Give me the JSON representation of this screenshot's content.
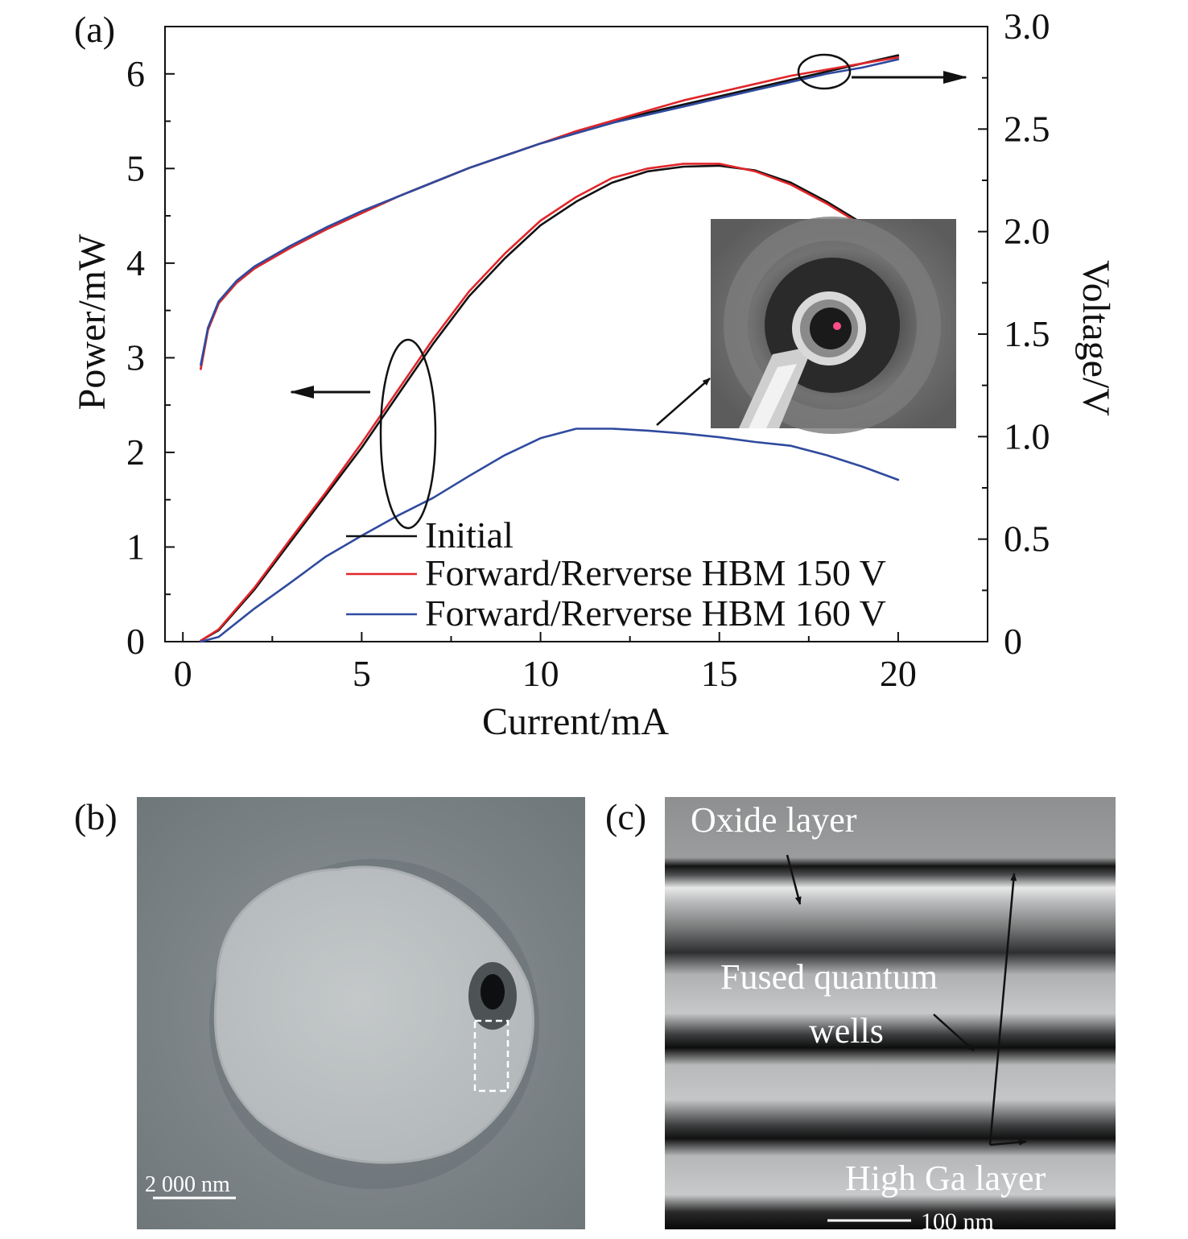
{
  "colors": {
    "initial": "#111111",
    "hbm150": "#e0262a",
    "hbm160": "#2f4a9e",
    "axis": "#111111"
  },
  "panel_labels": {
    "a": "(a)",
    "b": "(b)",
    "c": "(c)"
  },
  "chart_data": {
    "type": "line",
    "xlabel": "Current/mA",
    "ylabel_left": "Power/mW",
    "ylabel_right": "Voltage/V",
    "xlim": [
      -0.5,
      22.5
    ],
    "ylim_left": [
      0,
      6.5
    ],
    "ylim_right": [
      0,
      3.0
    ],
    "x_ticks": [
      "0",
      "5",
      "10",
      "15",
      "20"
    ],
    "y_ticks_left": [
      "0",
      "1",
      "2",
      "3",
      "4",
      "5",
      "6"
    ],
    "y_ticks_right": [
      "0",
      "0.5",
      "1.0",
      "1.5",
      "2.0",
      "2.5",
      "3.0"
    ],
    "grid": false,
    "legend_position": "bottom-right",
    "series": [
      {
        "name": "Initial",
        "axis": "left",
        "x": [
          0.5,
          1,
          2,
          3,
          4,
          5,
          6,
          7,
          8,
          9,
          10,
          11,
          12,
          13,
          14,
          15,
          16,
          17,
          18,
          19
        ],
        "y": [
          0.01,
          0.12,
          0.55,
          1.05,
          1.55,
          2.05,
          2.6,
          3.15,
          3.65,
          4.05,
          4.4,
          4.65,
          4.85,
          4.97,
          5.02,
          5.03,
          4.98,
          4.85,
          4.65,
          4.42
        ]
      },
      {
        "name": "Forward/Rerverse HBM 150 V",
        "axis": "left",
        "x": [
          0.5,
          1,
          2,
          3,
          4,
          5,
          6,
          7,
          8,
          9,
          10,
          11,
          12,
          13,
          14,
          15,
          16,
          17,
          18,
          19
        ],
        "y": [
          0.01,
          0.13,
          0.57,
          1.08,
          1.58,
          2.1,
          2.65,
          3.2,
          3.7,
          4.1,
          4.45,
          4.7,
          4.9,
          5.0,
          5.05,
          5.05,
          4.97,
          4.83,
          4.63,
          4.4
        ]
      },
      {
        "name": "Forward/Rerverse HBM 160 V",
        "axis": "left",
        "x": [
          0.5,
          1,
          2,
          3,
          4,
          5,
          6,
          7,
          8,
          9,
          10,
          11,
          12,
          13,
          14,
          15,
          16,
          17,
          18,
          19,
          20
        ],
        "y": [
          0.0,
          0.05,
          0.35,
          0.62,
          0.9,
          1.12,
          1.33,
          1.52,
          1.75,
          1.97,
          2.15,
          2.25,
          2.25,
          2.23,
          2.2,
          2.16,
          2.11,
          2.07,
          1.97,
          1.85,
          1.71
        ]
      },
      {
        "axis": "right",
        "x": [
          0.5,
          0.7,
          1,
          1.5,
          2,
          3,
          4,
          5,
          6,
          7,
          8,
          9,
          10,
          11,
          12,
          13,
          14,
          15,
          16,
          17,
          18,
          19,
          20
        ],
        "y": [
          1.33,
          1.52,
          1.65,
          1.75,
          1.82,
          1.92,
          2.01,
          2.09,
          2.17,
          2.24,
          2.31,
          2.37,
          2.43,
          2.48,
          2.53,
          2.58,
          2.62,
          2.66,
          2.7,
          2.74,
          2.78,
          2.82,
          2.86
        ]
      },
      {
        "axis": "right",
        "x": [
          0.5,
          0.7,
          1,
          1.5,
          2,
          3,
          4,
          5,
          6,
          7,
          8,
          9,
          10,
          11,
          12,
          13,
          14,
          15,
          16,
          17,
          18,
          19,
          20
        ],
        "y": [
          1.33,
          1.52,
          1.65,
          1.75,
          1.82,
          1.92,
          2.01,
          2.09,
          2.17,
          2.24,
          2.31,
          2.37,
          2.43,
          2.49,
          2.54,
          2.59,
          2.64,
          2.68,
          2.72,
          2.76,
          2.79,
          2.82,
          2.85
        ]
      },
      {
        "axis": "right",
        "x": [
          0.5,
          0.7,
          1,
          1.5,
          2,
          3,
          4,
          5,
          6,
          7,
          8,
          9,
          10,
          11,
          12,
          13,
          14,
          15,
          16,
          17,
          18,
          19,
          20
        ],
        "y": [
          1.35,
          1.53,
          1.66,
          1.76,
          1.83,
          1.93,
          2.02,
          2.1,
          2.17,
          2.24,
          2.31,
          2.37,
          2.43,
          2.48,
          2.53,
          2.57,
          2.61,
          2.65,
          2.69,
          2.73,
          2.77,
          2.8,
          2.84
        ]
      }
    ]
  },
  "inset_a": {
    "description": "emission photo"
  },
  "panel_b": {
    "scale_bar": "2 000 nm"
  },
  "panel_c": {
    "labels": {
      "oxide": "Oxide layer",
      "fused_1": "Fused quantum",
      "fused_2": "wells",
      "high_ga": "High Ga layer"
    },
    "scale_bar": "100 nm"
  }
}
